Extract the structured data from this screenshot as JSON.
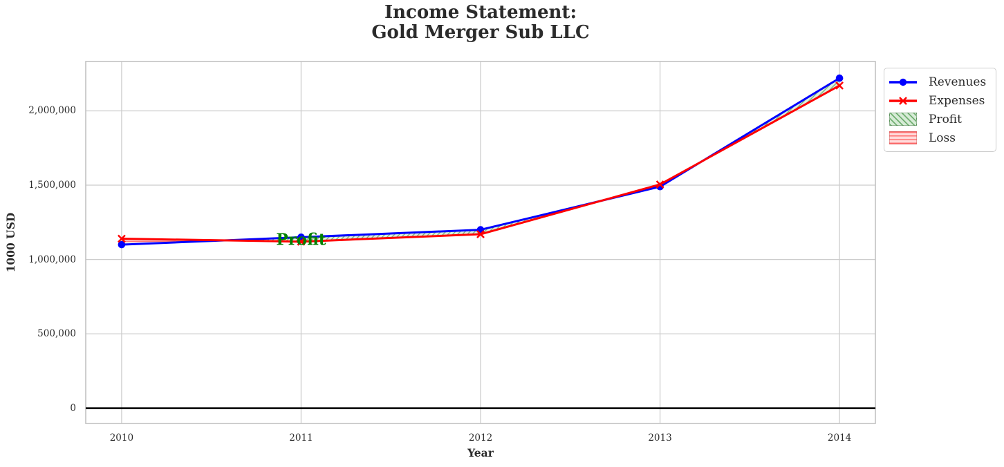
{
  "chart_data": {
    "type": "line",
    "title": "Income Statement:\nGold Merger Sub LLC",
    "title_lines": [
      "Income Statement:",
      "Gold Merger Sub LLC"
    ],
    "xlabel": "Year",
    "ylabel": "1000 USD",
    "x": [
      2010,
      2011,
      2012,
      2013,
      2014
    ],
    "x_tick_labels": [
      "2010",
      "2011",
      "2012",
      "2013",
      "2014"
    ],
    "y_ticks": [
      0,
      500000,
      1000000,
      1500000,
      2000000
    ],
    "y_tick_labels": [
      "0",
      "500,000",
      "1,000,000",
      "1,500,000",
      "2,000,000"
    ],
    "xlim": [
      2009.8,
      2014.2
    ],
    "ylim": [
      -103000,
      2332000
    ],
    "grid": true,
    "zero_line": true,
    "series": [
      {
        "name": "Revenues",
        "color": "#0000ff",
        "marker": "circle",
        "values": [
          1100000,
          1150000,
          1200000,
          1490000,
          2220000
        ]
      },
      {
        "name": "Expenses",
        "color": "#ff0000",
        "marker": "x",
        "values": [
          1140000,
          1120000,
          1170000,
          1505000,
          2170000
        ]
      }
    ],
    "fills": [
      {
        "name": "Profit",
        "condition": "revenues > expenses",
        "color": "#008000",
        "hatch": "diagonal"
      },
      {
        "name": "Loss",
        "condition": "expenses > revenues",
        "color": "#ff0000",
        "hatch": "horizontal"
      }
    ],
    "annotations": [
      {
        "text": "Profit",
        "x": 2011,
        "y": 1135000,
        "color": "#008000"
      }
    ],
    "legend": {
      "position": "upper-right-outside",
      "entries": [
        "Revenues",
        "Expenses",
        "Profit",
        "Loss"
      ]
    }
  }
}
